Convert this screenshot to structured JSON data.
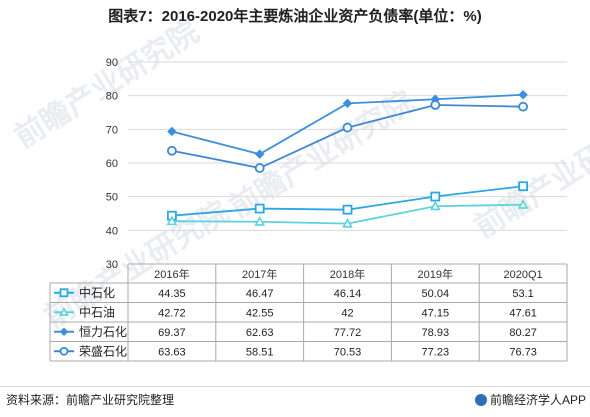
{
  "title": "图表7：2016-2020年主要炼油企业资产负债率(单位：%)",
  "watermarks": [
    "前瞻产业研究院",
    "前瞻产业研究院",
    "前瞻产业研究院",
    "前瞻产业研究院"
  ],
  "footer": {
    "source": "资料来源：前瞻产业研究院整理",
    "brand": "前瞻经济学人APP"
  },
  "colors": {
    "中石化": "#2aa8e4",
    "中石油": "#5cd3dc",
    "恒力石化": "#3b8fde",
    "荣盛石化": "#3d88d3",
    "grid": "#d9d9d9",
    "table_border": "#a9a9a9"
  },
  "chart_data": {
    "type": "line",
    "categories": [
      "2016年",
      "2017年",
      "2018年",
      "2019年",
      "2020Q1"
    ],
    "ylim": [
      30,
      90
    ],
    "yticks": [
      30,
      40,
      50,
      60,
      70,
      80,
      90
    ],
    "grid": true,
    "legend": "data-table",
    "series": [
      {
        "name": "中石化",
        "marker": "square",
        "values": [
          44.35,
          46.47,
          46.14,
          50.04,
          53.1
        ],
        "labels": [
          "44.35",
          "46.47",
          "46.14",
          "50.04",
          "53.1"
        ]
      },
      {
        "name": "中石油",
        "marker": "triangle",
        "values": [
          42.72,
          42.55,
          42,
          47.15,
          47.61
        ],
        "labels": [
          "42.72",
          "42.55",
          "42",
          "47.15",
          "47.61"
        ]
      },
      {
        "name": "恒力石化",
        "marker": "diamond",
        "values": [
          69.37,
          62.63,
          77.72,
          78.93,
          80.27
        ],
        "labels": [
          "69.37",
          "62.63",
          "77.72",
          "78.93",
          "80.27"
        ]
      },
      {
        "name": "荣盛石化",
        "marker": "circle",
        "values": [
          63.63,
          58.51,
          70.53,
          77.23,
          76.73
        ],
        "labels": [
          "63.63",
          "58.51",
          "70.53",
          "77.23",
          "76.73"
        ]
      }
    ]
  }
}
